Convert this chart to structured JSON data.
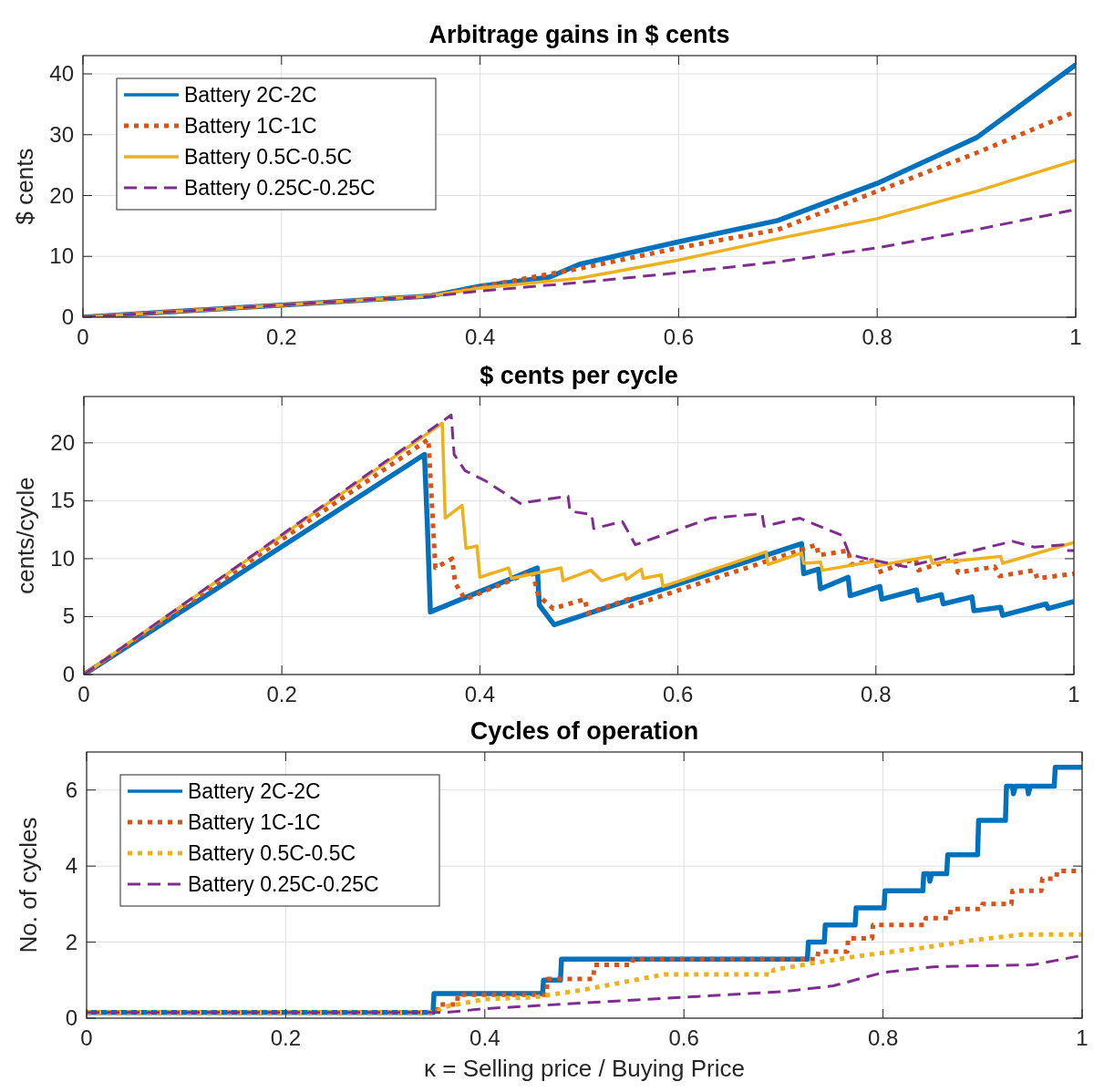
{
  "chart_data": [
    {
      "type": "line",
      "title": "Arbitrage gains in $ cents",
      "ylabel": "$ cents",
      "xlim": [
        0,
        1
      ],
      "xticks": [
        0,
        0.2,
        0.4,
        0.6,
        0.8,
        1
      ],
      "ylim": [
        0,
        43
      ],
      "yticks": [
        0,
        10,
        20,
        30,
        40
      ],
      "grid": true,
      "legend": "top left",
      "series": [
        {
          "name": "Battery 2C-2C",
          "color": "#0072bd",
          "line_style": "solid",
          "x": [
            0,
            0.1,
            0.2,
            0.3,
            0.35,
            0.4,
            0.47,
            0.5,
            0.6,
            0.7,
            0.8,
            0.9,
            1
          ],
          "values": [
            0,
            1,
            2,
            3,
            3.5,
            5.1,
            6.6,
            8.7,
            12.4,
            15.9,
            22,
            29.5,
            41.5
          ]
        },
        {
          "name": "Battery 1C-1C",
          "color": "#d95319",
          "line_style": "dotted",
          "x": [
            0,
            0.1,
            0.2,
            0.3,
            0.35,
            0.4,
            0.5,
            0.6,
            0.7,
            0.8,
            0.9,
            1
          ],
          "values": [
            0,
            1,
            2,
            3,
            3.5,
            5,
            8,
            11.4,
            14.4,
            20.7,
            27,
            33.8
          ]
        },
        {
          "name": "Battery 0.5C-0.5C",
          "color": "#edb120",
          "line_style": "solid",
          "x": [
            0,
            0.1,
            0.2,
            0.3,
            0.35,
            0.4,
            0.5,
            0.6,
            0.7,
            0.8,
            0.9,
            1
          ],
          "values": [
            0,
            1,
            2,
            3,
            3.5,
            4.8,
            6.4,
            9.4,
            12.9,
            16.2,
            20.7,
            25.8
          ]
        },
        {
          "name": "Battery 0.25C-0.25C",
          "color": "#7e2f8e",
          "line_style": "dashed",
          "x": [
            0,
            0.1,
            0.2,
            0.3,
            0.35,
            0.4,
            0.5,
            0.6,
            0.7,
            0.8,
            0.9,
            1
          ],
          "values": [
            0,
            1,
            2,
            3,
            3.4,
            4.3,
            5.7,
            7.3,
            9.1,
            11.4,
            14.4,
            17.7
          ]
        }
      ]
    },
    {
      "type": "line",
      "title": "$ cents per cycle",
      "ylabel": "cents/cycle",
      "xlim": [
        0,
        1
      ],
      "xticks": [
        0,
        0.2,
        0.4,
        0.6,
        0.8,
        1
      ],
      "ylim": [
        0,
        24
      ],
      "yticks": [
        0,
        5,
        10,
        15,
        20
      ],
      "grid": true,
      "legend": false,
      "series": [
        {
          "color": "#0072bd",
          "line_style": "solid",
          "x": [
            0,
            0.344,
            0.347,
            0.35,
            0.458,
            0.46,
            0.475,
            0.725,
            0.727,
            0.742,
            0.744,
            0.772,
            0.774,
            0.804,
            0.806,
            0.841,
            0.843,
            0.866,
            0.868,
            0.897,
            0.899,
            0.926,
            0.928,
            0.972,
            0.974,
            1
          ],
          "values": [
            0,
            19.0,
            12.8,
            5.4,
            9.2,
            6.0,
            4.3,
            11.3,
            8.7,
            9.1,
            7.4,
            8.4,
            6.8,
            7.6,
            6.5,
            7.3,
            6.4,
            6.9,
            6.1,
            6.7,
            5.5,
            5.8,
            5.1,
            6.1,
            5.7,
            6.3
          ]
        },
        {
          "color": "#d95319",
          "line_style": "dotted",
          "x": [
            0,
            0.348,
            0.355,
            0.372,
            0.375,
            0.385,
            0.453,
            0.459,
            0.474,
            0.506,
            0.509,
            0.55,
            0.552,
            0.74,
            0.742,
            0.772,
            0.775,
            0.8,
            0.802,
            0.84,
            0.843,
            0.88,
            0.883,
            0.92,
            0.925,
            0.96,
            0.963,
            1
          ],
          "values": [
            0,
            20.3,
            9.2,
            10.0,
            7.9,
            6.5,
            8.9,
            6.8,
            5.7,
            6.5,
            5.3,
            6.5,
            5.9,
            11.2,
            10.3,
            10.7,
            9.5,
            9.9,
            8.8,
            10.0,
            9.0,
            10.0,
            8.8,
            9.3,
            8.5,
            9.0,
            8.3,
            8.7
          ]
        },
        {
          "color": "#edb120",
          "line_style": "solid",
          "x": [
            0,
            0.362,
            0.365,
            0.382,
            0.386,
            0.397,
            0.4,
            0.429,
            0.432,
            0.482,
            0.484,
            0.512,
            0.523,
            0.546,
            0.548,
            0.563,
            0.565,
            0.583,
            0.585,
            0.689,
            0.691,
            0.725,
            0.727,
            0.744,
            0.746,
            0.8,
            0.802,
            0.855,
            0.857,
            0.926,
            0.928,
            1
          ],
          "values": [
            0,
            21.7,
            13.5,
            14.6,
            10.9,
            11.1,
            8.4,
            9.2,
            8.3,
            9.2,
            8.1,
            9.0,
            8.1,
            8.7,
            8.2,
            9.1,
            8.3,
            8.6,
            7.6,
            10.6,
            9.5,
            10.5,
            9.6,
            9.7,
            9.0,
            9.8,
            9.4,
            10.2,
            9.6,
            10.2,
            9.6,
            11.4
          ]
        },
        {
          "color": "#7e2f8e",
          "line_style": "dashed",
          "x": [
            0,
            0.371,
            0.374,
            0.385,
            0.406,
            0.442,
            0.449,
            0.489,
            0.491,
            0.513,
            0.515,
            0.544,
            0.557,
            0.633,
            0.685,
            0.687,
            0.723,
            0.766,
            0.773,
            0.785,
            0.83,
            0.938,
            0.96,
            0.989,
            0.991,
            1
          ],
          "values": [
            0,
            22.4,
            19.0,
            17.6,
            16.7,
            14.7,
            14.9,
            15.4,
            14.1,
            13.8,
            12.6,
            13.2,
            11.2,
            13.5,
            13.9,
            12.8,
            13.5,
            12.0,
            10.4,
            10.1,
            9.3,
            11.5,
            11.0,
            11.2,
            10.7,
            10.7
          ]
        }
      ]
    },
    {
      "type": "line",
      "title": "Cycles of operation",
      "xlabel": "κ = Selling price / Buying Price",
      "ylabel": "No. of cycles",
      "xlim": [
        0,
        1
      ],
      "xticks": [
        0,
        0.2,
        0.4,
        0.6,
        0.8,
        1
      ],
      "ylim": [
        0,
        7
      ],
      "yticks": [
        0,
        2,
        4,
        6
      ],
      "grid": true,
      "legend": "top left",
      "series": [
        {
          "name": "Battery 2C-2C",
          "color": "#0072bd",
          "line_style": "solid",
          "x": [
            0,
            0.348,
            0.349,
            0.458,
            0.459,
            0.476,
            0.477,
            0.724,
            0.725,
            0.741,
            0.742,
            0.772,
            0.773,
            0.801,
            0.802,
            0.84,
            0.841,
            0.846,
            0.847,
            0.849,
            0.864,
            0.865,
            0.895,
            0.896,
            0.923,
            0.924,
            0.93,
            0.931,
            0.933,
            0.945,
            0.946,
            0.948,
            0.972,
            0.973,
            1
          ],
          "values": [
            0.15,
            0.15,
            0.65,
            0.65,
            1.0,
            1.0,
            1.55,
            1.55,
            2.0,
            2.0,
            2.45,
            2.45,
            2.9,
            2.9,
            3.35,
            3.35,
            3.8,
            3.8,
            3.6,
            3.8,
            3.8,
            4.3,
            4.3,
            5.2,
            5.2,
            6.1,
            6.1,
            5.9,
            6.1,
            6.1,
            5.9,
            6.1,
            6.1,
            6.6,
            6.6
          ]
        },
        {
          "name": "Battery 1C-1C",
          "color": "#d95319",
          "line_style": "dotted",
          "x": [
            0,
            0.352,
            0.353,
            0.372,
            0.373,
            0.462,
            0.463,
            0.509,
            0.51,
            0.548,
            0.549,
            0.734,
            0.735,
            0.764,
            0.765,
            0.789,
            0.79,
            0.842,
            0.843,
            0.867,
            0.868,
            0.899,
            0.9,
            0.929,
            0.93,
            0.959,
            0.96,
            0.974,
            0.975,
            1
          ],
          "values": [
            0.15,
            0.15,
            0.36,
            0.36,
            0.62,
            0.62,
            1.03,
            1.03,
            1.4,
            1.4,
            1.55,
            1.55,
            1.75,
            1.75,
            2.1,
            2.1,
            2.45,
            2.45,
            2.63,
            2.63,
            2.87,
            2.87,
            3.0,
            3.0,
            3.35,
            3.35,
            3.67,
            3.67,
            3.87,
            3.87
          ]
        },
        {
          "name": "Battery 0.5C-0.5C",
          "color": "#edb120",
          "line_style": "dotted",
          "x": [
            0,
            0.35,
            0.36,
            0.4,
            0.45,
            0.5,
            0.55,
            0.58,
            0.689,
            0.69,
            0.73,
            0.78,
            0.84,
            0.89,
            0.94,
            1
          ],
          "values": [
            0.15,
            0.15,
            0.3,
            0.5,
            0.55,
            0.75,
            1.0,
            1.15,
            1.15,
            1.27,
            1.45,
            1.65,
            1.85,
            2.05,
            2.2,
            2.2
          ]
        },
        {
          "name": "Battery 0.25C-0.25C",
          "color": "#7e2f8e",
          "line_style": "dashed",
          "x": [
            0,
            0.36,
            0.4,
            0.5,
            0.6,
            0.7,
            0.75,
            0.8,
            0.85,
            0.9,
            0.95,
            1
          ],
          "values": [
            0.15,
            0.15,
            0.25,
            0.4,
            0.55,
            0.7,
            0.85,
            1.2,
            1.35,
            1.38,
            1.4,
            1.65
          ]
        }
      ]
    }
  ]
}
